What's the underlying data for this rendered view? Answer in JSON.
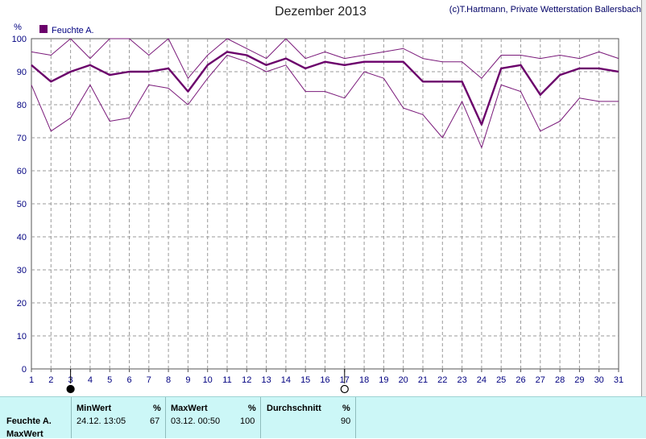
{
  "header": {
    "title": "Dezember 2013",
    "copyright": "(c)T.Hartmann, Private Wetterstation Ballersbach"
  },
  "chart_data": {
    "type": "line",
    "title": "Dezember 2013",
    "ylabel": "%",
    "ylim": [
      0,
      100
    ],
    "ytick_step": 10,
    "categories": [
      1,
      2,
      3,
      4,
      5,
      6,
      7,
      8,
      9,
      10,
      11,
      12,
      13,
      14,
      15,
      16,
      17,
      18,
      19,
      20,
      21,
      22,
      23,
      24,
      25,
      26,
      27,
      28,
      29,
      30,
      31
    ],
    "legend": {
      "label": "Feuchte A.",
      "color": "#6b006b",
      "position": "top-left"
    },
    "grid": true,
    "series": [
      {
        "name": "Feuchte A.",
        "role": "average",
        "color": "#6b006b",
        "values": [
          92,
          87,
          90,
          92,
          89,
          90,
          90,
          91,
          84,
          92,
          96,
          95,
          92,
          94,
          91,
          93,
          92,
          93,
          93,
          93,
          87,
          87,
          87,
          74,
          91,
          92,
          83,
          89,
          91,
          91,
          90
        ]
      },
      {
        "name": "",
        "role": "max",
        "color": "#7a1a7a",
        "values": [
          96,
          95,
          100,
          94,
          100,
          100,
          95,
          100,
          88,
          95,
          100,
          97,
          94,
          100,
          94,
          96,
          94,
          95,
          96,
          97,
          94,
          93,
          93,
          88,
          95,
          95,
          94,
          95,
          94,
          96,
          94
        ]
      },
      {
        "name": "",
        "role": "min",
        "color": "#7a1a7a",
        "values": [
          86,
          72,
          76,
          86,
          75,
          76,
          86,
          85,
          80,
          88,
          95,
          93,
          90,
          92,
          84,
          84,
          82,
          90,
          88,
          79,
          77,
          70,
          81,
          67,
          86,
          84,
          72,
          75,
          82,
          81,
          81
        ]
      }
    ],
    "markers": [
      {
        "day": 3,
        "kind": "filled"
      },
      {
        "day": 17,
        "kind": "open"
      }
    ]
  },
  "stats": {
    "row_label_1": "Feuchte A.",
    "row_label_2": "MaxWert",
    "min": {
      "header": "MinWert",
      "unit": "%",
      "datetime": "24.12.  13:05",
      "value": "67"
    },
    "max": {
      "header": "MaxWert",
      "unit": "%",
      "datetime": "03.12.  00:50",
      "value": "100"
    },
    "avg": {
      "header": "Durchschnitt",
      "unit": "%",
      "value": "90"
    }
  }
}
